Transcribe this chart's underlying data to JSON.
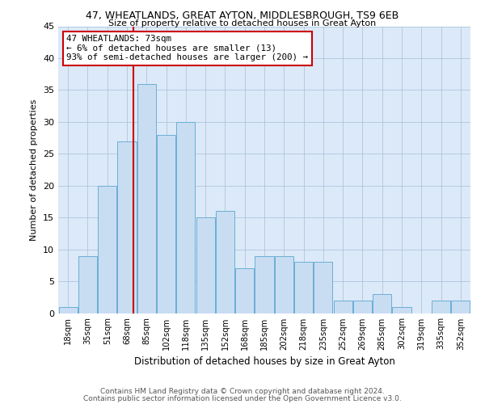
{
  "title": "47, WHEATLANDS, GREAT AYTON, MIDDLESBROUGH, TS9 6EB",
  "subtitle": "Size of property relative to detached houses in Great Ayton",
  "xlabel": "Distribution of detached houses by size in Great Ayton",
  "ylabel": "Number of detached properties",
  "bin_labels": [
    "18sqm",
    "35sqm",
    "51sqm",
    "68sqm",
    "85sqm",
    "102sqm",
    "118sqm",
    "135sqm",
    "152sqm",
    "168sqm",
    "185sqm",
    "202sqm",
    "218sqm",
    "235sqm",
    "252sqm",
    "269sqm",
    "285sqm",
    "302sqm",
    "319sqm",
    "335sqm",
    "352sqm"
  ],
  "bar_heights": [
    1,
    9,
    20,
    27,
    36,
    28,
    30,
    15,
    16,
    7,
    9,
    9,
    8,
    8,
    2,
    2,
    3,
    1,
    0,
    2,
    2
  ],
  "bar_color": "#c9ddf2",
  "bar_edge_color": "#6aaed6",
  "vline_color": "#cc0000",
  "vline_x_index": 3.32,
  "annotation_text": "47 WHEATLANDS: 73sqm\n← 6% of detached houses are smaller (13)\n93% of semi-detached houses are larger (200) →",
  "annotation_box_color": "#ffffff",
  "annotation_box_edge": "#cc0000",
  "ylim": [
    0,
    45
  ],
  "yticks": [
    0,
    5,
    10,
    15,
    20,
    25,
    30,
    35,
    40,
    45
  ],
  "footer_line1": "Contains HM Land Registry data © Crown copyright and database right 2024.",
  "footer_line2": "Contains public sector information licensed under the Open Government Licence v3.0.",
  "background_color": "#ffffff",
  "plot_bg_color": "#dce9f8",
  "grid_color": "#b0c4de"
}
